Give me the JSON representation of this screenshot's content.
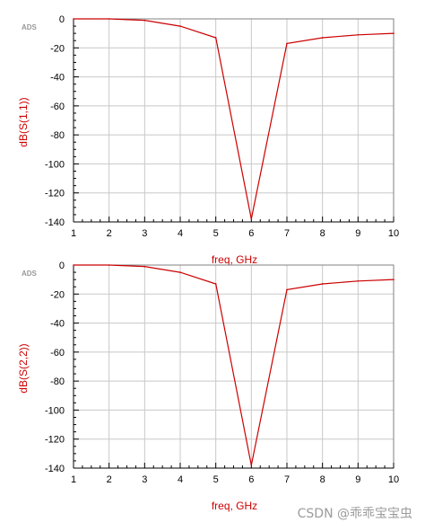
{
  "chart_data": [
    {
      "type": "line",
      "tag": "ADS",
      "xlabel": "freq, GHz",
      "ylabel": "dB(S(1,1))",
      "xlim": [
        1,
        10
      ],
      "ylim": [
        -140,
        0
      ],
      "xticks": [
        1,
        2,
        3,
        4,
        5,
        6,
        7,
        8,
        9,
        10
      ],
      "yticks": [
        0,
        -20,
        -40,
        -60,
        -80,
        -100,
        -120,
        -140
      ],
      "x_minor_per_major": 4,
      "y_minor_per_major": 4,
      "grid": true,
      "series": [
        {
          "color": "#cc0000",
          "x": [
            1,
            2,
            3,
            4,
            5,
            6,
            7,
            8,
            9,
            10
          ],
          "y": [
            0,
            0,
            -1,
            -5,
            -13,
            -138,
            -17,
            -13,
            -11,
            -10
          ]
        }
      ]
    },
    {
      "type": "line",
      "tag": "ADS",
      "xlabel": "freq, GHz",
      "ylabel": "dB(S(2,2))",
      "xlim": [
        1,
        10
      ],
      "ylim": [
        -140,
        0
      ],
      "xticks": [
        1,
        2,
        3,
        4,
        5,
        6,
        7,
        8,
        9,
        10
      ],
      "yticks": [
        0,
        -20,
        -40,
        -60,
        -80,
        -100,
        -120,
        -140
      ],
      "x_minor_per_major": 4,
      "y_minor_per_major": 4,
      "grid": true,
      "series": [
        {
          "color": "#cc0000",
          "x": [
            1,
            2,
            3,
            4,
            5,
            6,
            7,
            8,
            9,
            10
          ],
          "y": [
            0,
            0,
            -1,
            -5,
            -13,
            -138,
            -17,
            -13,
            -11,
            -10
          ]
        }
      ]
    }
  ],
  "watermark": "CSDN @乖乖宝宝虫"
}
